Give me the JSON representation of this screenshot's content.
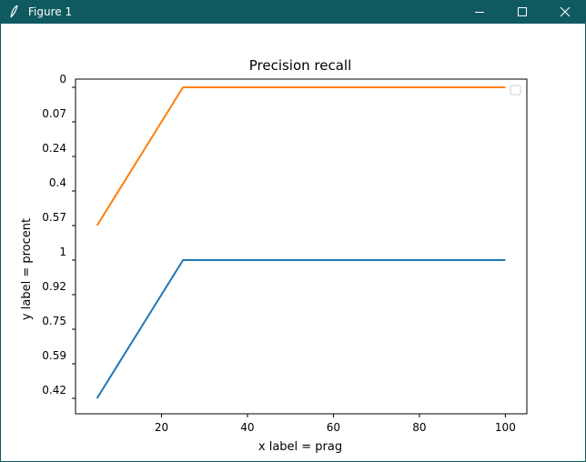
{
  "window": {
    "title": "Figure 1",
    "titlebar_color": "#0f5a61",
    "icons": {
      "app": "feather-icon",
      "minimize": "minimize-icon",
      "maximize": "maximize-icon",
      "close": "close-icon"
    }
  },
  "chart_data": {
    "type": "line",
    "title": "Precision recall",
    "xlabel": "x label = prag",
    "ylabel": "y label = procent",
    "xlim": [
      0,
      105
    ],
    "xticks": [
      20,
      40,
      60,
      80,
      100
    ],
    "y_categories": [
      "0.42",
      "0.59",
      "0.75",
      "0.92",
      "1",
      "0.57",
      "0.4",
      "0.24",
      "0.07",
      "0"
    ],
    "grid": false,
    "legend": {
      "placement": "top-right",
      "entries": []
    },
    "series": [
      {
        "color": "#1f77b4",
        "x": [
          5,
          25,
          100
        ],
        "y": [
          "0.42",
          "1",
          "1"
        ]
      },
      {
        "color": "#ff7f0e",
        "x": [
          5,
          25,
          100
        ],
        "y": [
          "0.57",
          "0",
          "0"
        ]
      }
    ]
  }
}
